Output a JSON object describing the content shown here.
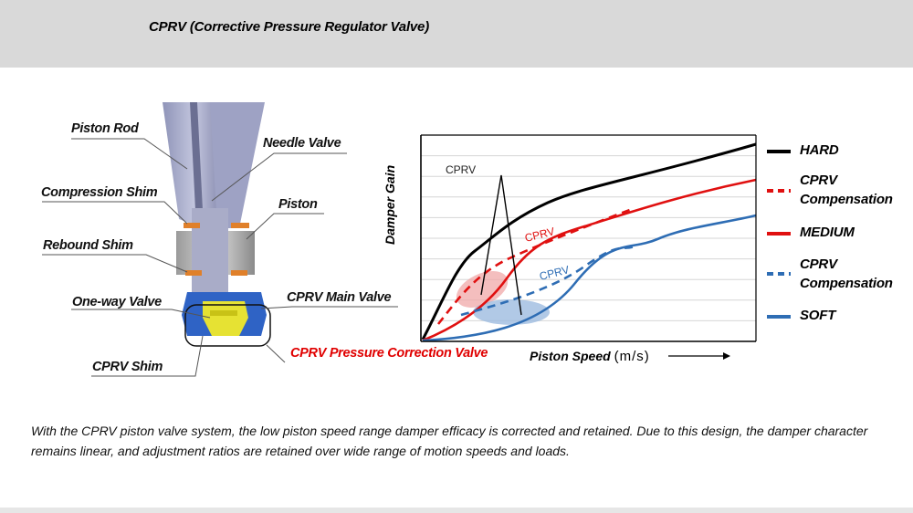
{
  "header": {
    "title": "CPRV (Corrective Pressure Regulator Valve)"
  },
  "diagram_labels": {
    "piston_rod": "Piston Rod",
    "needle_valve": "Needle Valve",
    "compression_shim": "Compression Shim",
    "piston": "Piston",
    "rebound_shim": "Rebound Shim",
    "one_way_valve": "One-way Valve",
    "cprv_main_valve": "CPRV Main Valve",
    "cprv_shim": "CPRV Shim",
    "cprv_pressure_correction_valve": "CPRV Pressure Correction Valve"
  },
  "chart_data": {
    "type": "line",
    "xlabel": "Piston Speed",
    "xunit": "(m/s)",
    "ylabel": "Damper Gain",
    "annotations": {
      "cprv_top": "CPRV",
      "cprv_red": "CPRV",
      "cprv_blue": "CPRV"
    },
    "legend": [
      {
        "name": "HARD",
        "color": "#000000",
        "style": "solid"
      },
      {
        "name": "CPRV Compensation",
        "line1": "CPRV",
        "line2": "Compensation",
        "color": "#e01010",
        "style": "dashed"
      },
      {
        "name": "MEDIUM",
        "color": "#e01010",
        "style": "solid"
      },
      {
        "name": "CPRV Compensation",
        "line1": "CPRV",
        "line2": "Compensation",
        "color": "#2e6db4",
        "style": "dashed"
      },
      {
        "name": "SOFT",
        "color": "#2e6db4",
        "style": "solid"
      }
    ],
    "legend_placement": "right",
    "grid": true,
    "colors": {
      "hard": "#000000",
      "medium": "#e01010",
      "soft": "#2e6db4"
    }
  },
  "caption": {
    "text": "With the CPRV piston valve system, the low piston speed range damper efficacy is corrected and retained.  Due to this design, the damper character remains linear, and adjustment ratios are retained over wide range of motion speeds and loads."
  }
}
